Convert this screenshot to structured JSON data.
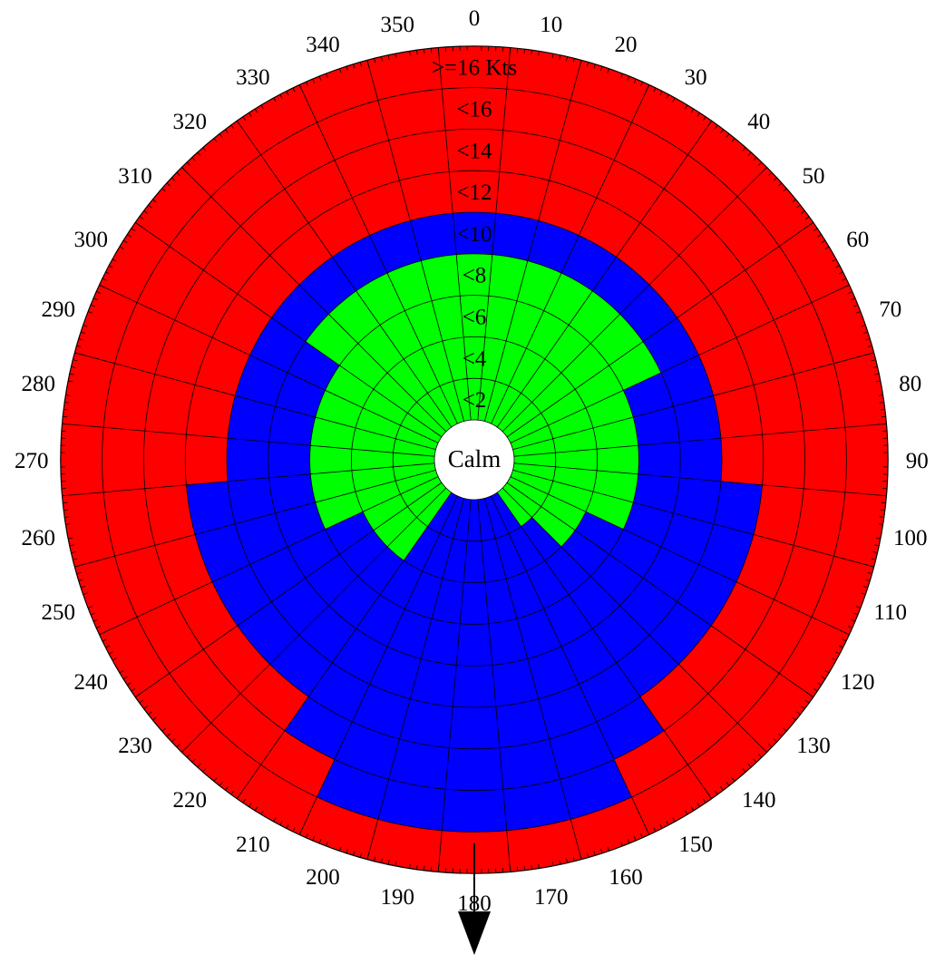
{
  "chart_data": {
    "type": "polar-sector",
    "direction_labels": [
      "0",
      "10",
      "20",
      "30",
      "40",
      "50",
      "60",
      "70",
      "80",
      "90",
      "100",
      "110",
      "120",
      "130",
      "140",
      "150",
      "160",
      "170",
      "180",
      "190",
      "200",
      "210",
      "220",
      "230",
      "240",
      "250",
      "260",
      "270",
      "280",
      "290",
      "300",
      "310",
      "320",
      "330",
      "340",
      "350"
    ],
    "ring_labels": [
      "<2",
      "<4",
      "<6",
      "<8",
      "<10",
      "<12",
      "<14",
      "<16",
      ">=16 Kts"
    ],
    "center_label": "Calm",
    "colors": {
      "green": "#00ff00",
      "blue": "#0000ff",
      "red": "#ff0000",
      "grid": "#000000"
    },
    "sector_width_deg": 10,
    "directions": [
      0,
      10,
      20,
      30,
      40,
      50,
      60,
      70,
      80,
      90,
      100,
      110,
      120,
      130,
      140,
      150,
      160,
      170,
      180,
      190,
      200,
      210,
      220,
      230,
      240,
      250,
      260,
      270,
      280,
      290,
      300,
      310,
      320,
      330,
      340,
      350
    ],
    "green_max_kts": [
      8,
      8,
      8,
      8,
      8,
      8,
      8,
      6,
      6,
      6,
      6,
      6,
      4,
      4,
      2,
      0,
      0,
      0,
      0,
      0,
      0,
      0,
      4,
      4,
      4,
      6,
      6,
      6,
      6,
      6,
      6,
      8,
      8,
      8,
      8,
      8
    ],
    "blue_max_kts": [
      10,
      10,
      10,
      10,
      10,
      10,
      10,
      10,
      10,
      10,
      12,
      12,
      12,
      12,
      12,
      14,
      16,
      16,
      16,
      16,
      16,
      14,
      12,
      12,
      12,
      12,
      12,
      10,
      10,
      10,
      10,
      10,
      10,
      10,
      10,
      10
    ],
    "arrow": "down"
  }
}
